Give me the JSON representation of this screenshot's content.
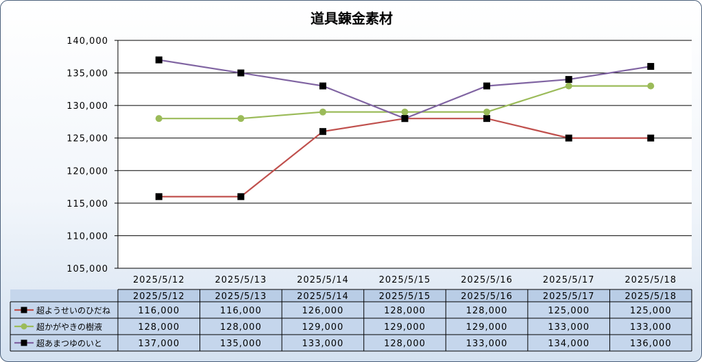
{
  "chart_data": {
    "type": "line",
    "title": "道具錬金素材",
    "categories": [
      "2025/5/12",
      "2025/5/13",
      "2025/5/14",
      "2025/5/15",
      "2025/5/16",
      "2025/5/17",
      "2025/5/18"
    ],
    "y_tick_labels": [
      "140,000",
      "135,000",
      "130,000",
      "125,000",
      "120,000",
      "115,000",
      "110,000",
      "105,000"
    ],
    "ylim": [
      105000,
      140000
    ],
    "grid": true,
    "legend": "data-table-bottom",
    "series": [
      {
        "name": "超ようせいのひだね",
        "color": "#c0504d",
        "marker": "square",
        "marker_color": "#000000",
        "values": [
          116000,
          116000,
          126000,
          128000,
          128000,
          125000,
          125000
        ],
        "labels": [
          "116,000",
          "116,000",
          "126,000",
          "128,000",
          "128,000",
          "125,000",
          "125,000"
        ]
      },
      {
        "name": "超かがやきの樹液",
        "color": "#9bbb59",
        "marker": "circle",
        "marker_color": "#9bbb59",
        "values": [
          128000,
          128000,
          129000,
          129000,
          129000,
          133000,
          133000
        ],
        "labels": [
          "128,000",
          "128,000",
          "129,000",
          "129,000",
          "129,000",
          "133,000",
          "133,000"
        ]
      },
      {
        "name": "超あまつゆのいと",
        "color": "#8064a2",
        "marker": "square",
        "marker_color": "#000000",
        "values": [
          137000,
          135000,
          133000,
          128000,
          133000,
          134000,
          136000
        ],
        "labels": [
          "137,000",
          "135,000",
          "133,000",
          "128,000",
          "133,000",
          "134,000",
          "136,000"
        ]
      }
    ]
  }
}
